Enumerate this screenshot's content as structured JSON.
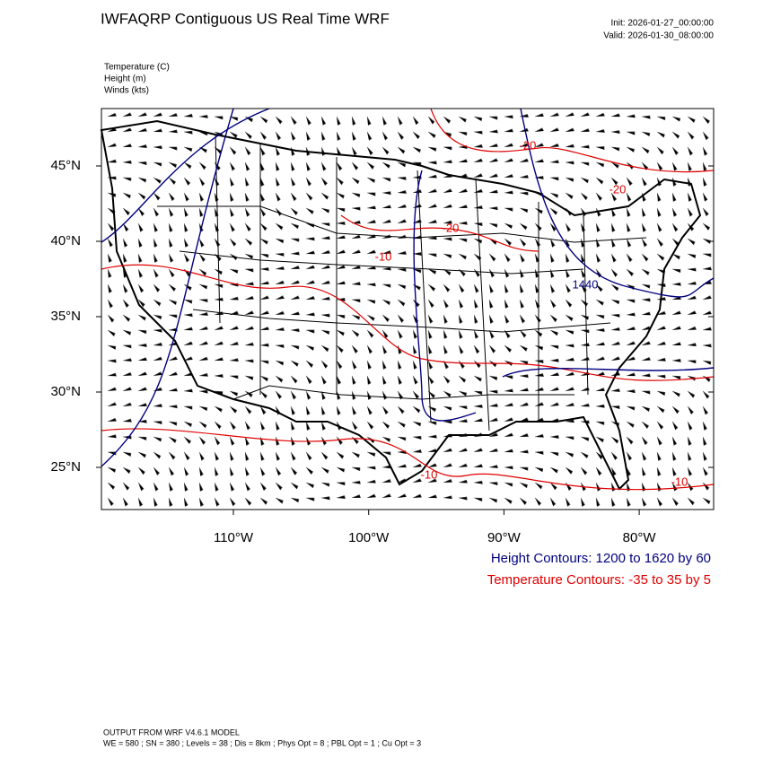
{
  "header": {
    "title": "IWFAQRP Contiguous US Real Time WRF",
    "init": "Init: 2026-01-27_00:00:00",
    "valid": "Valid: 2026-01-30_08:00:00"
  },
  "fields": [
    "Temperature   (C)",
    "Height   (m)",
    "Winds   (kts)"
  ],
  "map": {
    "lat_ticks": [
      {
        "value": 45,
        "label": "45°N"
      },
      {
        "value": 40,
        "label": "40°N"
      },
      {
        "value": 35,
        "label": "35°N"
      },
      {
        "value": 30,
        "label": "30°N"
      },
      {
        "value": 25,
        "label": "25°N"
      }
    ],
    "lon_ticks": [
      {
        "value": -110,
        "label": "110°W"
      },
      {
        "value": -100,
        "label": "100°W"
      },
      {
        "value": -90,
        "label": "90°W"
      },
      {
        "value": -80,
        "label": "80°W"
      }
    ],
    "contour_labels": [
      "-20",
      "-20",
      "-20",
      "-10",
      "1440",
      "-10",
      "-10"
    ]
  },
  "legend": {
    "height": "Height Contours: 1200 to 1620 by 60",
    "temperature": "Temperature Contours: -35 to 35 by 5"
  },
  "footer": {
    "line1": "OUTPUT FROM WRF V4.6.1 MODEL",
    "line2": "WE = 580 ; SN = 380 ; Levels = 38 ; Dis = 8km ; Phys Opt = 8 ; PBL Opt = 1 ; Cu Opt = 3"
  }
}
